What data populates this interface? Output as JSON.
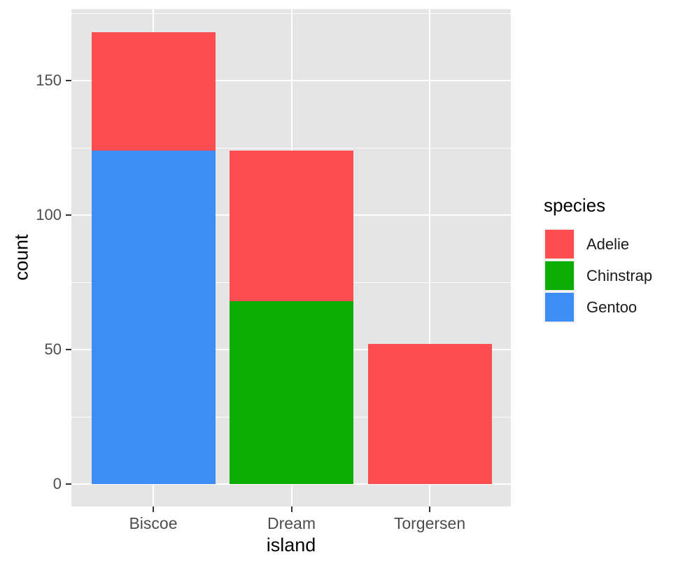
{
  "chart_data": {
    "type": "bar",
    "stacked": true,
    "title": "",
    "xlabel": "island",
    "ylabel": "count",
    "categories": [
      "Biscoe",
      "Dream",
      "Torgersen"
    ],
    "series": [
      {
        "name": "Adelie",
        "color": "#fc4e51",
        "values": [
          44,
          56,
          52
        ]
      },
      {
        "name": "Chinstrap",
        "color": "#0bad00",
        "values": [
          0,
          68,
          0
        ]
      },
      {
        "name": "Gentoo",
        "color": "#3e8df5",
        "values": [
          124,
          0,
          0
        ]
      }
    ],
    "y_ticks": [
      0,
      50,
      100,
      150
    ],
    "y_minor_ticks": [
      25,
      75,
      125,
      175
    ],
    "ylim": [
      0,
      176
    ],
    "grid": true,
    "legend": {
      "title": "species",
      "position": "right",
      "entries": [
        "Adelie",
        "Chinstrap",
        "Gentoo"
      ]
    },
    "theme": {
      "panel_bg": "#e5e5e5",
      "grid_color": "#ffffff",
      "tick_color": "#333333",
      "axis_text_color": "#4d4d4d",
      "title_color": "#000000",
      "legend_key_bg": "#f0f0f0"
    }
  }
}
